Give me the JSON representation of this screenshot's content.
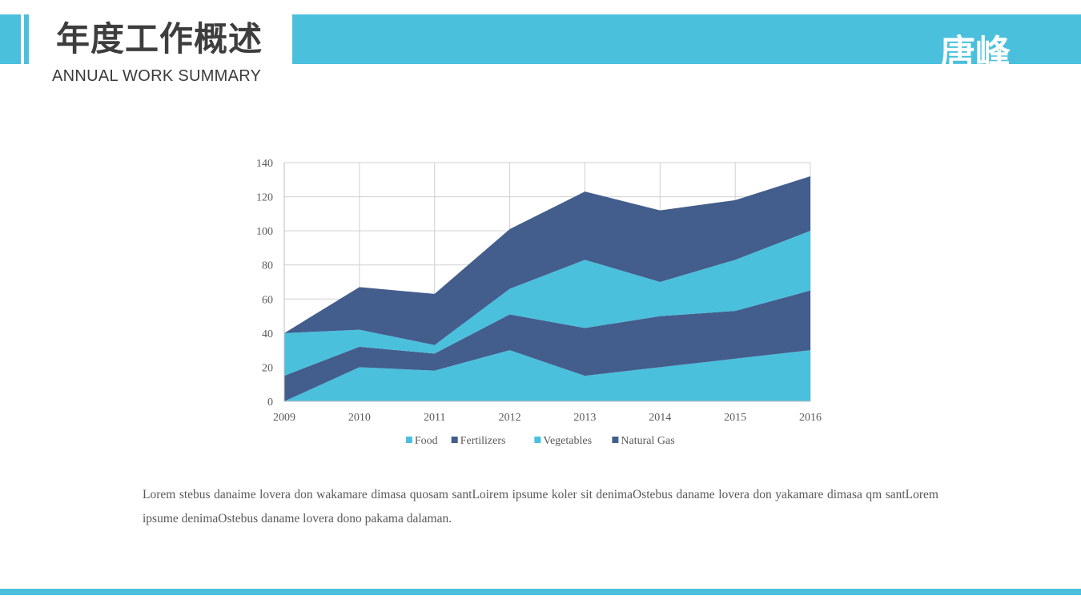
{
  "header": {
    "title_zh": "年度工作概述",
    "title_en": "ANNUAL  WORK SUMMARY",
    "author": "唐峰"
  },
  "colors": {
    "accent": "#4ac0dd",
    "dark": "#435d8c",
    "title_text": "#3e3e3e"
  },
  "chart_data": {
    "type": "area",
    "stacked": true,
    "categories": [
      "2009",
      "2010",
      "2011",
      "2012",
      "2013",
      "2014",
      "2015",
      "2016"
    ],
    "series": [
      {
        "name": "Food",
        "color": "#4ac0dd",
        "values": [
          0,
          20,
          18,
          30,
          15,
          20,
          25,
          30
        ]
      },
      {
        "name": "Fertilizers",
        "color": "#435d8c",
        "values": [
          15,
          12,
          10,
          21,
          28,
          30,
          28,
          35
        ]
      },
      {
        "name": "Vegetables",
        "color": "#4ac0dd",
        "values": [
          25,
          10,
          5,
          15,
          40,
          20,
          30,
          35
        ]
      },
      {
        "name": "Natural Gas",
        "color": "#435d8c",
        "values": [
          0,
          25,
          30,
          35,
          40,
          42,
          35,
          32
        ]
      }
    ],
    "ylim": [
      0,
      140
    ],
    "yticks": [
      "0",
      "20",
      "40",
      "60",
      "80",
      "100",
      "120",
      "140"
    ],
    "grid": true,
    "legend_position": "bottom",
    "title": "",
    "xlabel": "",
    "ylabel": ""
  },
  "body_text": "Lorem stebus danaime lovera don wakamare dimasa quosam santLoirem ipsume koler sit denimaOstebus daname lovera don yakamare dimasa qm santLorem ipsume denimaOstebus daname lovera dono pakama  dalaman."
}
